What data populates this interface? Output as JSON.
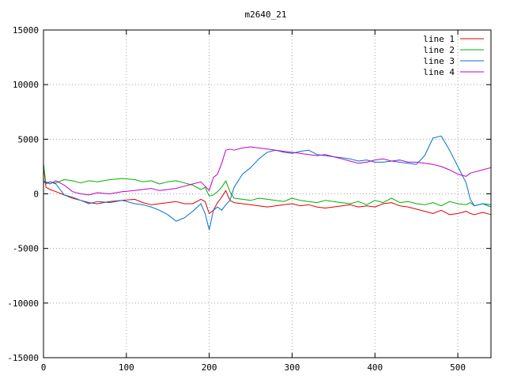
{
  "chart_data": {
    "type": "line",
    "title": "m2640_21",
    "xlabel": "",
    "ylabel": "",
    "xlim": [
      0,
      540
    ],
    "ylim": [
      -15000,
      15000
    ],
    "grid": true,
    "legend_position": "top-right",
    "x_ticks": [
      0,
      100,
      200,
      300,
      400,
      500
    ],
    "x_tick_labels": [
      "0",
      "100",
      "200",
      "300",
      "400",
      "500"
    ],
    "y_ticks": [
      -15000,
      -10000,
      -5000,
      0,
      5000,
      10000,
      15000
    ],
    "y_tick_labels": [
      "-15000",
      "-10000",
      "-5000",
      "0",
      "5000",
      "10000",
      "15000"
    ],
    "x": [
      0,
      3,
      8,
      15,
      25,
      35,
      45,
      55,
      65,
      80,
      95,
      110,
      120,
      130,
      140,
      150,
      160,
      170,
      180,
      190,
      195,
      200,
      205,
      210,
      215,
      220,
      225,
      230,
      240,
      250,
      260,
      270,
      280,
      290,
      300,
      310,
      320,
      330,
      340,
      350,
      360,
      370,
      380,
      390,
      400,
      410,
      420,
      430,
      440,
      450,
      460,
      470,
      480,
      490,
      500,
      510,
      515,
      520,
      530,
      540
    ],
    "series": [
      {
        "name": "line 1",
        "color": "#e00000",
        "values": [
          2600,
          600,
          400,
          200,
          -100,
          -400,
          -600,
          -800,
          -900,
          -700,
          -600,
          -500,
          -800,
          -1000,
          -900,
          -800,
          -700,
          -900,
          -900,
          -500,
          -700,
          -1800,
          -1500,
          -800,
          -300,
          300,
          -600,
          -800,
          -900,
          -1000,
          -1100,
          -1200,
          -1100,
          -1000,
          -900,
          -1100,
          -1000,
          -1200,
          -1300,
          -1200,
          -1100,
          -1000,
          -1200,
          -1100,
          -1200,
          -900,
          -800,
          -1100,
          -1200,
          -1400,
          -1600,
          -1800,
          -1500,
          -1900,
          -1800,
          -1600,
          -1800,
          -1900,
          -1700,
          -1900
        ]
      },
      {
        "name": "line 2",
        "color": "#00b000",
        "values": [
          2800,
          900,
          1100,
          1000,
          1300,
          1200,
          1000,
          1200,
          1100,
          1300,
          1400,
          1300,
          1100,
          1200,
          900,
          1100,
          1200,
          1000,
          800,
          400,
          600,
          -200,
          -100,
          200,
          600,
          1200,
          200,
          -400,
          -500,
          -600,
          -400,
          -500,
          -600,
          -700,
          -400,
          -600,
          -700,
          -800,
          -600,
          -700,
          -800,
          -900,
          -700,
          -1000,
          -600,
          -800,
          -400,
          -800,
          -700,
          -900,
          -1000,
          -800,
          -1100,
          -700,
          -900,
          -1000,
          -800,
          -1100,
          -900,
          -1200
        ]
      },
      {
        "name": "line 3",
        "color": "#0070d0",
        "values": [
          1200,
          1000,
          1100,
          900,
          -100,
          -300,
          -600,
          -900,
          -700,
          -800,
          -600,
          -900,
          -1000,
          -1200,
          -1500,
          -1900,
          -2500,
          -2200,
          -1600,
          -900,
          -1800,
          -3300,
          -1500,
          -1200,
          -1500,
          -1000,
          -600,
          600,
          1800,
          2400,
          3200,
          3800,
          4000,
          3800,
          3700,
          3900,
          4000,
          3600,
          3500,
          3400,
          3300,
          3200,
          3000,
          3100,
          2900,
          2900,
          3000,
          2900,
          2800,
          2700,
          3500,
          5100,
          5300,
          4000,
          2500,
          1000,
          -500,
          -1100,
          -900,
          -1000
        ]
      },
      {
        "name": "line 4",
        "color": "#c000c0",
        "values": [
          1000,
          1100,
          900,
          1200,
          800,
          200,
          0,
          -100,
          100,
          0,
          200,
          300,
          400,
          500,
          300,
          400,
          500,
          700,
          900,
          1100,
          700,
          300,
          1500,
          1800,
          2800,
          4000,
          4100,
          4000,
          4200,
          4300,
          4200,
          4100,
          4000,
          3900,
          3800,
          3700,
          3600,
          3500,
          3600,
          3400,
          3200,
          3000,
          2800,
          2900,
          3100,
          3200,
          3000,
          3100,
          2900,
          2900,
          2800,
          2700,
          2500,
          2200,
          1800,
          1600,
          1900,
          2000,
          2200,
          2400
        ]
      }
    ]
  }
}
